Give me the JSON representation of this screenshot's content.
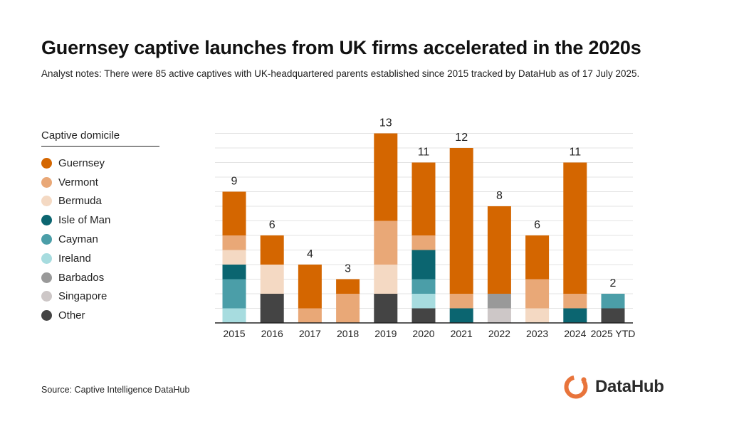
{
  "title": "Guernsey captive launches from UK firms accelerated in the 2020s",
  "subtitle": "Analyst notes: There were 85 active captives with UK-headquartered parents established since 2015 tracked by DataHub as of 17 July 2025.",
  "source": "Source: Captive Intelligence DataHub",
  "logo": {
    "text": "DataHub",
    "icon": "datahub-logo-icon",
    "color": "#e8743b"
  },
  "legend": {
    "title": "Captive domicile"
  },
  "chart_data": {
    "type": "bar",
    "stacked": true,
    "categories": [
      "2015",
      "2016",
      "2017",
      "2018",
      "2019",
      "2020",
      "2021",
      "2022",
      "2023",
      "2024",
      "2025 YTD"
    ],
    "totals": [
      9,
      6,
      4,
      3,
      13,
      11,
      12,
      8,
      6,
      11,
      2
    ],
    "ylim": [
      0,
      13
    ],
    "grid": true,
    "legend_position": "left",
    "series": [
      {
        "name": "Other",
        "color": "#444444",
        "values": [
          0,
          2,
          0,
          0,
          2,
          1,
          0,
          0,
          0,
          0,
          1
        ]
      },
      {
        "name": "Singapore",
        "color": "#cdc7c7",
        "values": [
          0,
          0,
          0,
          0,
          0,
          0,
          0,
          1,
          0,
          0,
          0
        ]
      },
      {
        "name": "Barbados",
        "color": "#999999",
        "values": [
          0,
          0,
          0,
          0,
          0,
          0,
          0,
          1,
          0,
          0,
          0
        ]
      },
      {
        "name": "Ireland",
        "color": "#a7dcdf",
        "values": [
          1,
          0,
          0,
          0,
          0,
          1,
          0,
          0,
          0,
          0,
          0
        ]
      },
      {
        "name": "Cayman",
        "color": "#4b9ea8",
        "values": [
          2,
          0,
          0,
          0,
          0,
          1,
          0,
          0,
          0,
          0,
          1
        ]
      },
      {
        "name": "Isle of Man",
        "color": "#0b6570",
        "values": [
          1,
          0,
          0,
          0,
          0,
          2,
          1,
          0,
          0,
          1,
          0
        ]
      },
      {
        "name": "Bermuda",
        "color": "#f4d9c3",
        "values": [
          1,
          2,
          0,
          0,
          2,
          0,
          0,
          0,
          1,
          0,
          0
        ]
      },
      {
        "name": "Vermont",
        "color": "#e9a877",
        "values": [
          1,
          0,
          1,
          2,
          3,
          1,
          1,
          0,
          2,
          1,
          0
        ]
      },
      {
        "name": "Guernsey",
        "color": "#d46600",
        "values": [
          3,
          2,
          3,
          1,
          6,
          5,
          10,
          6,
          3,
          9,
          0
        ]
      }
    ],
    "legend_order": [
      "Guernsey",
      "Vermont",
      "Bermuda",
      "Isle of Man",
      "Cayman",
      "Ireland",
      "Barbados",
      "Singapore",
      "Other"
    ]
  }
}
